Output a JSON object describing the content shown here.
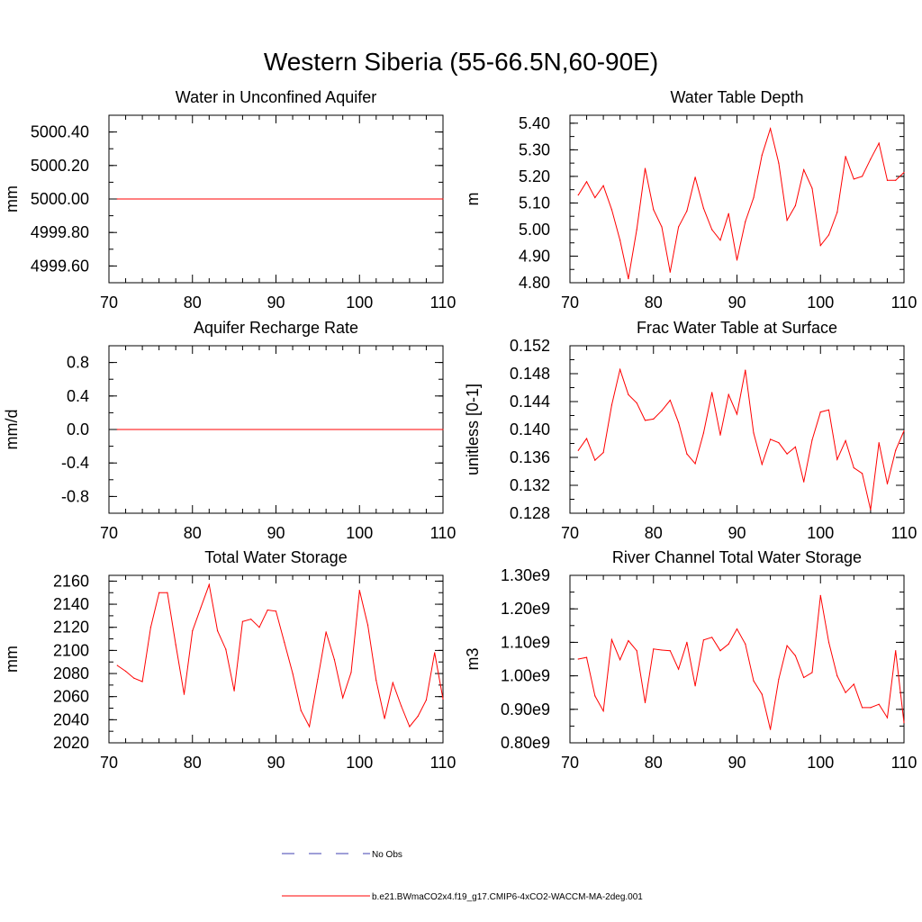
{
  "title": "Western Siberia (55-66.5N,60-90E)",
  "colors": {
    "series": "#ff0000",
    "obs": "#3f3fb0",
    "axis": "#000000"
  },
  "legend": {
    "obs_label": "No Obs",
    "model_label": "b.e21.BWmaCO2x4.f19_g17.CMIP6-4xCO2-WACCM-MA-2deg.001"
  },
  "chart_data": [
    {
      "type": "line",
      "title": "Water in Unconfined Aquifer",
      "ylabel": "mm",
      "xlim": [
        70,
        110
      ],
      "ylim": [
        4999.5,
        5000.5
      ],
      "yticks": [
        4999.6,
        4999.8,
        5000.0,
        5000.2,
        5000.4
      ],
      "yticklabels": [
        "4999.60",
        "4999.80",
        "5000.00",
        "5000.20",
        "5000.40"
      ],
      "xticks": [
        70,
        80,
        90,
        100,
        110
      ],
      "x": [
        71,
        110
      ],
      "values": [
        5000.0,
        5000.0
      ]
    },
    {
      "type": "line",
      "title": "Water Table Depth",
      "ylabel": "m",
      "xlim": [
        70,
        110
      ],
      "ylim": [
        4.8,
        5.43
      ],
      "yticks": [
        4.8,
        4.9,
        5.0,
        5.1,
        5.2,
        5.3,
        5.4
      ],
      "yticklabels": [
        "4.80",
        "4.90",
        "5.00",
        "5.10",
        "5.20",
        "5.30",
        "5.40"
      ],
      "xticks": [
        70,
        80,
        90,
        100,
        110
      ],
      "x": [
        71,
        72,
        73,
        74,
        75,
        76,
        77,
        78,
        79,
        80,
        81,
        82,
        83,
        84,
        85,
        86,
        87,
        88,
        89,
        90,
        91,
        92,
        93,
        94,
        95,
        96,
        97,
        98,
        99,
        100,
        101,
        102,
        103,
        104,
        105,
        106,
        107,
        108,
        109,
        110
      ],
      "values": [
        5.13,
        5.18,
        5.12,
        5.165,
        5.075,
        4.96,
        4.815,
        5.0,
        5.23,
        5.075,
        5.01,
        4.84,
        5.01,
        5.07,
        5.197,
        5.08,
        5.0,
        4.96,
        5.06,
        4.885,
        5.03,
        5.12,
        5.28,
        5.38,
        5.25,
        5.035,
        5.09,
        5.225,
        5.155,
        4.94,
        4.98,
        5.065,
        5.275,
        5.19,
        5.2,
        5.265,
        5.325,
        5.185,
        5.185,
        5.215
      ]
    },
    {
      "type": "line",
      "title": "Aquifer Recharge Rate",
      "ylabel": "mm/d",
      "xlim": [
        70,
        110
      ],
      "ylim": [
        -1.0,
        1.0
      ],
      "yticks": [
        -0.8,
        -0.4,
        0.0,
        0.4,
        0.8
      ],
      "yticklabels": [
        "-0.8",
        "-0.4",
        "0.0",
        "0.4",
        "0.8"
      ],
      "xticks": [
        70,
        80,
        90,
        100,
        110
      ],
      "x": [
        71,
        110
      ],
      "values": [
        0.0,
        0.0
      ]
    },
    {
      "type": "line",
      "title": "Frac Water Table at Surface",
      "ylabel": "unitless [0-1]",
      "xlim": [
        70,
        110
      ],
      "ylim": [
        0.128,
        0.152
      ],
      "yticks": [
        0.128,
        0.132,
        0.136,
        0.14,
        0.144,
        0.148,
        0.152
      ],
      "yticklabels": [
        "0.128",
        "0.132",
        "0.136",
        "0.140",
        "0.144",
        "0.148",
        "0.152"
      ],
      "xticks": [
        70,
        80,
        90,
        100,
        110
      ],
      "x": [
        71,
        72,
        73,
        74,
        75,
        76,
        77,
        78,
        79,
        80,
        81,
        82,
        83,
        84,
        85,
        86,
        87,
        88,
        89,
        90,
        91,
        92,
        93,
        94,
        95,
        96,
        97,
        98,
        99,
        100,
        101,
        102,
        103,
        104,
        105,
        106,
        107,
        108,
        109,
        110
      ],
      "values": [
        0.137,
        0.1387,
        0.1356,
        0.1367,
        0.1435,
        0.1486,
        0.145,
        0.1438,
        0.1413,
        0.1415,
        0.1427,
        0.1442,
        0.141,
        0.1365,
        0.1351,
        0.1395,
        0.1453,
        0.1392,
        0.145,
        0.1422,
        0.1485,
        0.1395,
        0.135,
        0.1386,
        0.1381,
        0.1365,
        0.1375,
        0.1325,
        0.1385,
        0.1425,
        0.1428,
        0.1357,
        0.1384,
        0.1345,
        0.1337,
        0.1285,
        0.1381,
        0.1322,
        0.137,
        0.1398
      ]
    },
    {
      "type": "line",
      "title": "Total Water Storage",
      "ylabel": "mm",
      "xlim": [
        70,
        110
      ],
      "ylim": [
        2020,
        2165
      ],
      "yticks": [
        2020,
        2040,
        2060,
        2080,
        2100,
        2120,
        2140,
        2160
      ],
      "yticklabels": [
        "2020",
        "2040",
        "2060",
        "2080",
        "2100",
        "2120",
        "2140",
        "2160"
      ],
      "xticks": [
        70,
        80,
        90,
        100,
        110
      ],
      "x": [
        71,
        72,
        73,
        74,
        75,
        76,
        77,
        78,
        79,
        80,
        81,
        82,
        83,
        84,
        85,
        86,
        87,
        88,
        89,
        90,
        91,
        92,
        93,
        94,
        95,
        96,
        97,
        98,
        99,
        100,
        101,
        102,
        103,
        104,
        105,
        106,
        107,
        108,
        109,
        110
      ],
      "values": [
        2087,
        2082,
        2076,
        2073,
        2120,
        2150,
        2150,
        2105,
        2062,
        2117,
        2137,
        2157,
        2117,
        2101,
        2065,
        2125,
        2127,
        2120,
        2135,
        2134,
        2107,
        2080,
        2048,
        2034,
        2075,
        2116,
        2092,
        2059,
        2081,
        2152,
        2122,
        2074,
        2041,
        2072,
        2052,
        2034,
        2043,
        2057,
        2098,
        2058
      ]
    },
    {
      "type": "line",
      "title": "River Channel Total Water Storage",
      "ylabel": "m3",
      "xlim": [
        70,
        110
      ],
      "ylim": [
        0.8,
        1.3
      ],
      "y_unit": "1e9",
      "yticks": [
        0.8,
        0.9,
        1.0,
        1.1,
        1.2,
        1.3
      ],
      "yticklabels": [
        "0.80e9",
        "0.90e9",
        "1.00e9",
        "1.10e9",
        "1.20e9",
        "1.30e9"
      ],
      "xticks": [
        70,
        80,
        90,
        100,
        110
      ],
      "x": [
        71,
        72,
        73,
        74,
        75,
        76,
        77,
        78,
        79,
        80,
        81,
        82,
        83,
        84,
        85,
        86,
        87,
        88,
        89,
        90,
        91,
        92,
        93,
        94,
        95,
        96,
        97,
        98,
        99,
        100,
        101,
        102,
        103,
        104,
        105,
        106,
        107,
        108,
        109,
        110
      ],
      "values": [
        1.05,
        1.055,
        0.94,
        0.895,
        1.108,
        1.048,
        1.105,
        1.075,
        0.92,
        1.08,
        1.077,
        1.075,
        1.02,
        1.1,
        0.97,
        1.107,
        1.115,
        1.075,
        1.095,
        1.14,
        1.095,
        0.985,
        0.945,
        0.84,
        0.99,
        1.09,
        1.06,
        0.995,
        1.01,
        1.24,
        1.1,
        1.0,
        0.95,
        0.975,
        0.905,
        0.905,
        0.915,
        0.875,
        1.075,
        0.86
      ]
    }
  ]
}
